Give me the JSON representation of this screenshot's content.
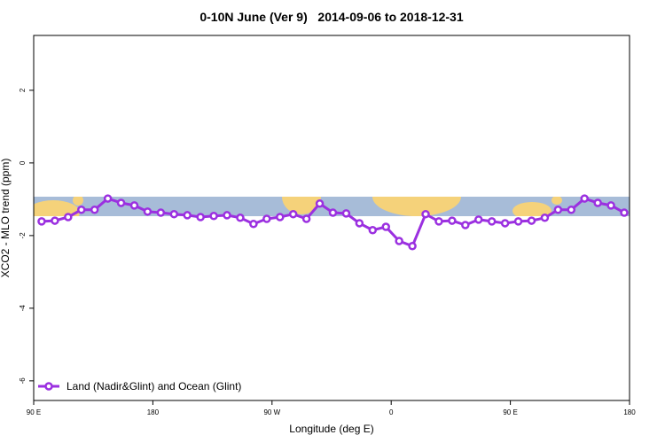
{
  "chart_data": {
    "type": "line",
    "title": "0-10N June (Ver 9)   2014-09-06 to 2018-12-31",
    "x_label": "Longitude (deg E)",
    "y_label": "XCO2 - MLO trend (ppm)",
    "xlim": [
      90,
      540
    ],
    "ylim": [
      -6.54,
      3.51
    ],
    "xticks": [
      {
        "value": 90,
        "label": "90 E"
      },
      {
        "value": 180,
        "label": "180"
      },
      {
        "value": 270,
        "label": "90 W"
      },
      {
        "value": 360,
        "label": "0"
      },
      {
        "value": 450,
        "label": "90 E"
      },
      {
        "value": 540,
        "label": "180"
      }
    ],
    "yticks": [
      -6,
      -4,
      -2,
      0,
      2
    ],
    "legend": "bottom-left",
    "x": [
      96,
      106,
      116,
      126,
      136,
      146,
      156,
      166,
      176,
      186,
      196,
      206,
      216,
      226,
      236,
      246,
      256,
      266,
      276,
      286,
      296,
      306,
      316,
      326,
      336,
      346,
      356,
      366,
      376,
      386,
      396,
      406,
      416,
      426,
      436,
      446,
      456,
      466,
      476,
      486,
      496,
      506,
      516,
      526,
      536
    ],
    "series": [
      {
        "name": "Land (Nadir&Glint) and Ocean (Glint)",
        "color": "#9b30e0",
        "values": [
          -1.61,
          -1.59,
          -1.49,
          -1.29,
          -1.29,
          -0.98,
          -1.1,
          -1.17,
          -1.34,
          -1.37,
          -1.41,
          -1.44,
          -1.49,
          -1.46,
          -1.44,
          -1.51,
          -1.68,
          -1.54,
          -1.49,
          -1.41,
          -1.54,
          -1.12,
          -1.37,
          -1.39,
          -1.66,
          -1.85,
          -1.76,
          -2.15,
          -2.29,
          -1.41,
          -1.61,
          -1.59,
          -1.71,
          -1.56,
          -1.61,
          -1.66,
          -1.61,
          -1.59,
          -1.51,
          -1.29,
          -1.29,
          -0.98,
          -1.1,
          -1.17,
          -1.37
        ]
      }
    ]
  }
}
